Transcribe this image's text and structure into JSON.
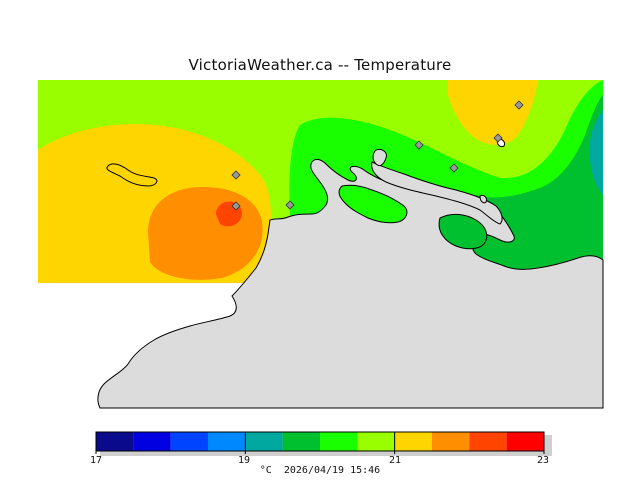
{
  "title": "VictoriaWeather.ca -- Temperature",
  "legend": {
    "ticks": [
      "17",
      "19",
      "21",
      "23"
    ],
    "unit": "°C",
    "timestamp": "2026/04/19 15:46",
    "bands": [
      {
        "from": 17.0,
        "to": 17.5,
        "color": "#0a0a8c"
      },
      {
        "from": 17.5,
        "to": 18.0,
        "color": "#0000e0"
      },
      {
        "from": 18.0,
        "to": 18.5,
        "color": "#0044ff"
      },
      {
        "from": 18.5,
        "to": 19.0,
        "color": "#0088ff"
      },
      {
        "from": 19.0,
        "to": 19.5,
        "color": "#00a8a0"
      },
      {
        "from": 19.5,
        "to": 20.0,
        "color": "#00c030"
      },
      {
        "from": 20.0,
        "to": 20.5,
        "color": "#19ff00"
      },
      {
        "from": 20.5,
        "to": 21.0,
        "color": "#99ff00"
      },
      {
        "from": 21.0,
        "to": 21.5,
        "color": "#ffd500"
      },
      {
        "from": 21.5,
        "to": 22.0,
        "color": "#ff8f00"
      },
      {
        "from": 22.0,
        "to": 22.5,
        "color": "#ff4400"
      },
      {
        "from": 22.5,
        "to": 23.0,
        "color": "#ff0000"
      }
    ]
  },
  "colors": {
    "land": "#dcdcdc",
    "station": "#999999",
    "coast": "#000000"
  }
}
